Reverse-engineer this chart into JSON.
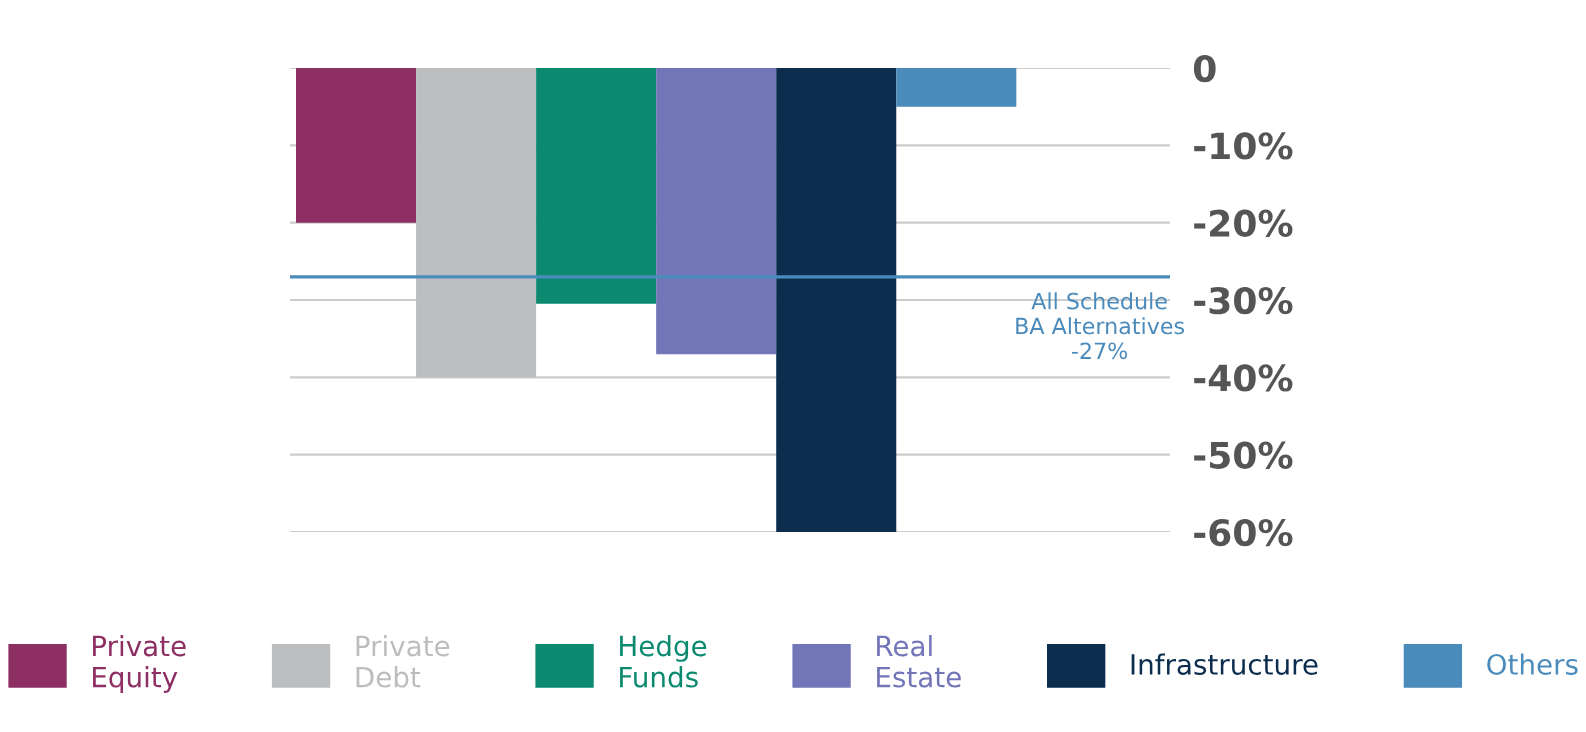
{
  "chart_data": {
    "type": "bar",
    "categories": [
      null
    ],
    "series": [
      {
        "name": "Private\nEquity",
        "color": "#8e2f63",
        "values": [
          -20
        ]
      },
      {
        "name": "Private\nDebt",
        "color": "#bcbdbf",
        "values": [
          -40
        ]
      },
      {
        "name": "Hedge\nFunds",
        "color": "#0b8a70",
        "values": [
          -30.5
        ]
      },
      {
        "name": "Real\nEstate",
        "color": "#7276b8",
        "values": [
          -37
        ]
      },
      {
        "name": "Infrastructure",
        "color": "#0d2d4f",
        "values": [
          -60
        ]
      },
      {
        "name": "Others",
        "color": "#4a8bbb",
        "values": [
          -5
        ]
      }
    ],
    "ylim": [
      -60,
      0
    ],
    "yticks": [
      0,
      {
        "value": -10,
        "label": "-10%"
      },
      {
        "value": -20,
        "label": "-20%"
      },
      {
        "value": -30,
        "label": "-30%"
      },
      {
        "value": -40,
        "label": "-40%"
      },
      {
        "value": -50,
        "label": "-50%"
      },
      {
        "value": -60,
        "label": "-60%"
      }
    ],
    "ref_lines": [
      {
        "axis": "y",
        "value": -27,
        "label": "All Schedule\nBA Alternatives\n-27%",
        "color": "#4a8bbb"
      }
    ],
    "grid": "y",
    "legend": "bottom",
    "tick_labels": "y"
  }
}
